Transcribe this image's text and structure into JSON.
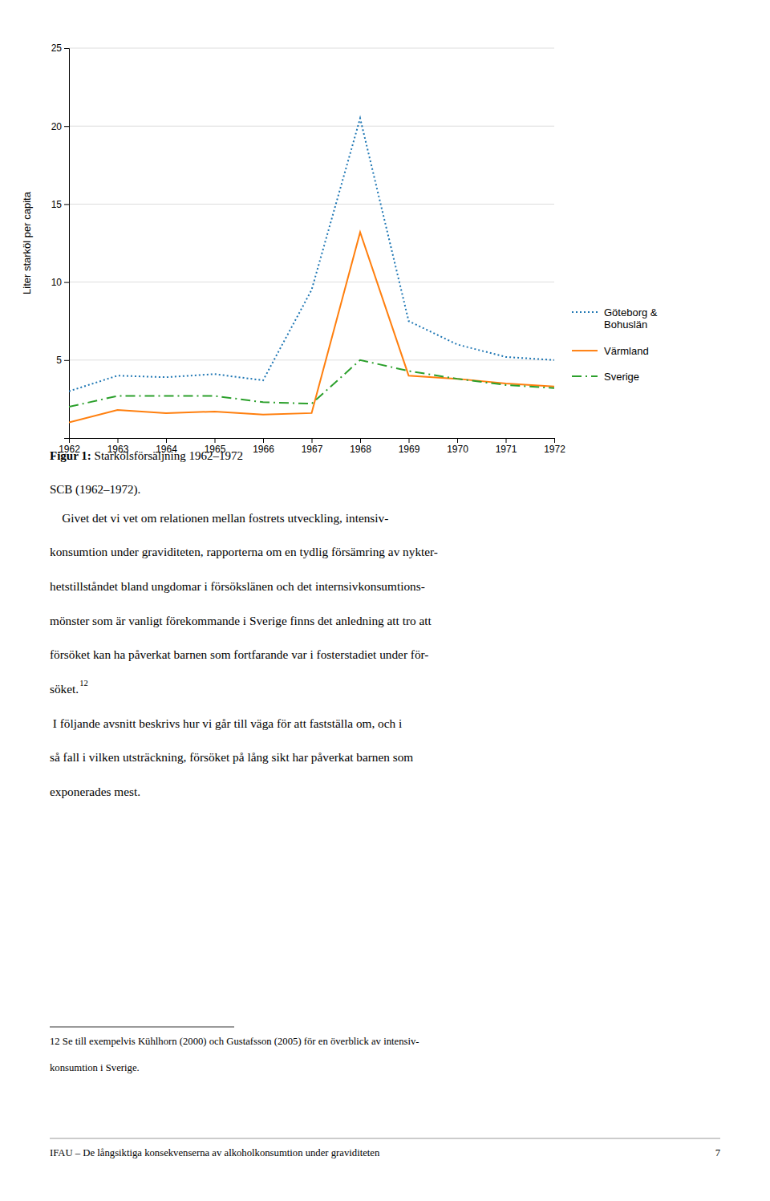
{
  "chart_data": {
    "type": "line",
    "x": [
      1962,
      1963,
      1964,
      1965,
      1966,
      1967,
      1968,
      1969,
      1970,
      1971,
      1972
    ],
    "xlim": [
      1962,
      1972
    ],
    "xticks": [
      1962,
      1963,
      1964,
      1965,
      1966,
      1967,
      1968,
      1969,
      1970,
      1971,
      1972
    ],
    "ylim": [
      0,
      25
    ],
    "yticks": [
      5,
      10,
      15,
      20,
      25
    ],
    "ylabel": "Liter starköl per capita",
    "grid": true,
    "legend": "right",
    "series": [
      {
        "name": "Göteborg &\nBohuslän",
        "line_style": "dotted",
        "values": [
          3.0,
          4.0,
          3.9,
          4.1,
          3.7,
          9.5,
          20.5,
          7.5,
          6.0,
          5.2,
          5.0
        ]
      },
      {
        "name": "Värmland",
        "line_style": "solid",
        "values": [
          1.0,
          1.8,
          1.6,
          1.7,
          1.5,
          1.6,
          13.2,
          4.0,
          3.8,
          3.5,
          3.3
        ]
      },
      {
        "name": "Sverige",
        "line_style": "dashdot",
        "values": [
          2.0,
          2.7,
          2.7,
          2.7,
          2.3,
          2.2,
          5.0,
          4.3,
          3.8,
          3.4,
          3.2
        ]
      }
    ]
  },
  "figure_caption_bold": "Figur 1:",
  "figure_caption_rest": " Starkölsförsäljning 1962–1972",
  "source_line": "SCB (1962–1972).",
  "body_lines": [
    "    Givet det vi vet om relationen mellan fostrets utveckling, intensiv-",
    "konsumtion under graviditeten, rapporterna om en tydlig försämring av nykter-",
    "hetstillståndet bland ungdomar i försökslänen och det internsivkonsumtions-",
    "mönster som är vanligt förekommande i Sverige finns det anledning att tro att",
    "försöket kan ha påverkat barnen som fortfarande var i fosterstadiet under för-",
    "söket."
  ],
  "body_superscript": "12",
  "body_lines2": [
    " I följande avsnitt beskrivs hur vi går till väga för att fastställa om, och i",
    "så fall i vilken utsträckning, försöket på lång sikt har påverkat barnen som",
    "exponerades mest."
  ],
  "footnote_lines": [
    "12 Se till exempelvis Kühlhorn (2000) och Gustafsson (2005) för en överblick av intensiv-",
    "konsumtion i Sverige."
  ],
  "footer": "IFAU – De långsiktiga konsekvenserna av alkoholkonsumtion under graviditeten",
  "page_number": "7"
}
